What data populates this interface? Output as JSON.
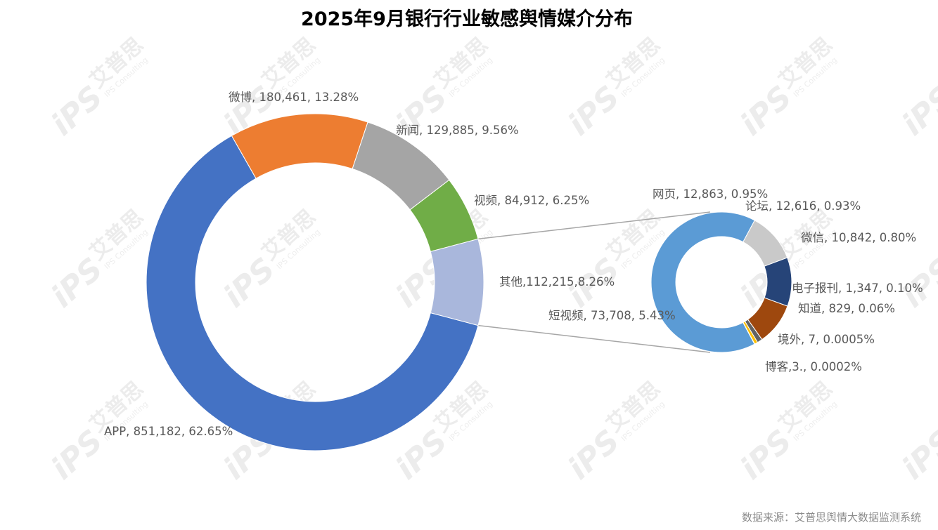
{
  "chart_data": {
    "type": "pie",
    "title": "2025年9月银行行业敏感舆情媒介分布",
    "primary": {
      "slices": [
        {
          "name": "APP",
          "value": 851182,
          "percent": "62.65%",
          "label": "APP, 851,182, 62.65%",
          "color": "#4472C4"
        },
        {
          "name": "微博",
          "value": 180461,
          "percent": "13.28%",
          "label": "微博, 180,461, 13.28%",
          "color": "#ED7D31"
        },
        {
          "name": "新闻",
          "value": 129885,
          "percent": "9.56%",
          "label": "新闻, 129,885, 9.56%",
          "color": "#A5A5A5"
        },
        {
          "name": "视频",
          "value": 84912,
          "percent": "6.25%",
          "label": "视频, 84,912, 6.25%",
          "color": "#70AD47"
        },
        {
          "name": "其他",
          "value": 112215,
          "percent": "8.26%",
          "label": "其他,112,215,8.26%",
          "color": "#A9B7DC"
        }
      ]
    },
    "secondary": {
      "parent": "其他",
      "slices": [
        {
          "name": "短视频",
          "value": 73708,
          "percent": "5.43%",
          "label": "短视频, 73,708, 5.43%",
          "color": "#5B9BD5"
        },
        {
          "name": "网页",
          "value": 12863,
          "percent": "0.95%",
          "label": "网页, 12,863, 0.95%",
          "color": "#C9C9C9"
        },
        {
          "name": "论坛",
          "value": 12616,
          "percent": "0.93%",
          "label": "论坛, 12,616, 0.93%",
          "color": "#264478"
        },
        {
          "name": "微信",
          "value": 10842,
          "percent": "0.80%",
          "label": "微信, 10,842, 0.80%",
          "color": "#9E480E"
        },
        {
          "name": "电子报刊",
          "value": 1347,
          "percent": "0.10%",
          "label": "电子报刊, 1,347, 0.10%",
          "color": "#636363"
        },
        {
          "name": "知道",
          "value": 829,
          "percent": "0.06%",
          "label": "知道, 829, 0.06%",
          "color": "#FFC000"
        },
        {
          "name": "境外",
          "value": 7,
          "percent": "0.0005%",
          "label": "境外, 7, 0.0005%",
          "color": "#4472C4"
        },
        {
          "name": "博客",
          "value": 3,
          "percent": "0.0002%",
          "label": "博客,3., 0.0002%",
          "color": "#ED7D31"
        }
      ]
    },
    "legend": "none",
    "source": "数据来源：艾普思舆情大数据监测系统"
  },
  "watermark": {
    "brand": "艾普思",
    "logo": "iPS",
    "sub": "IPS Consulting"
  }
}
